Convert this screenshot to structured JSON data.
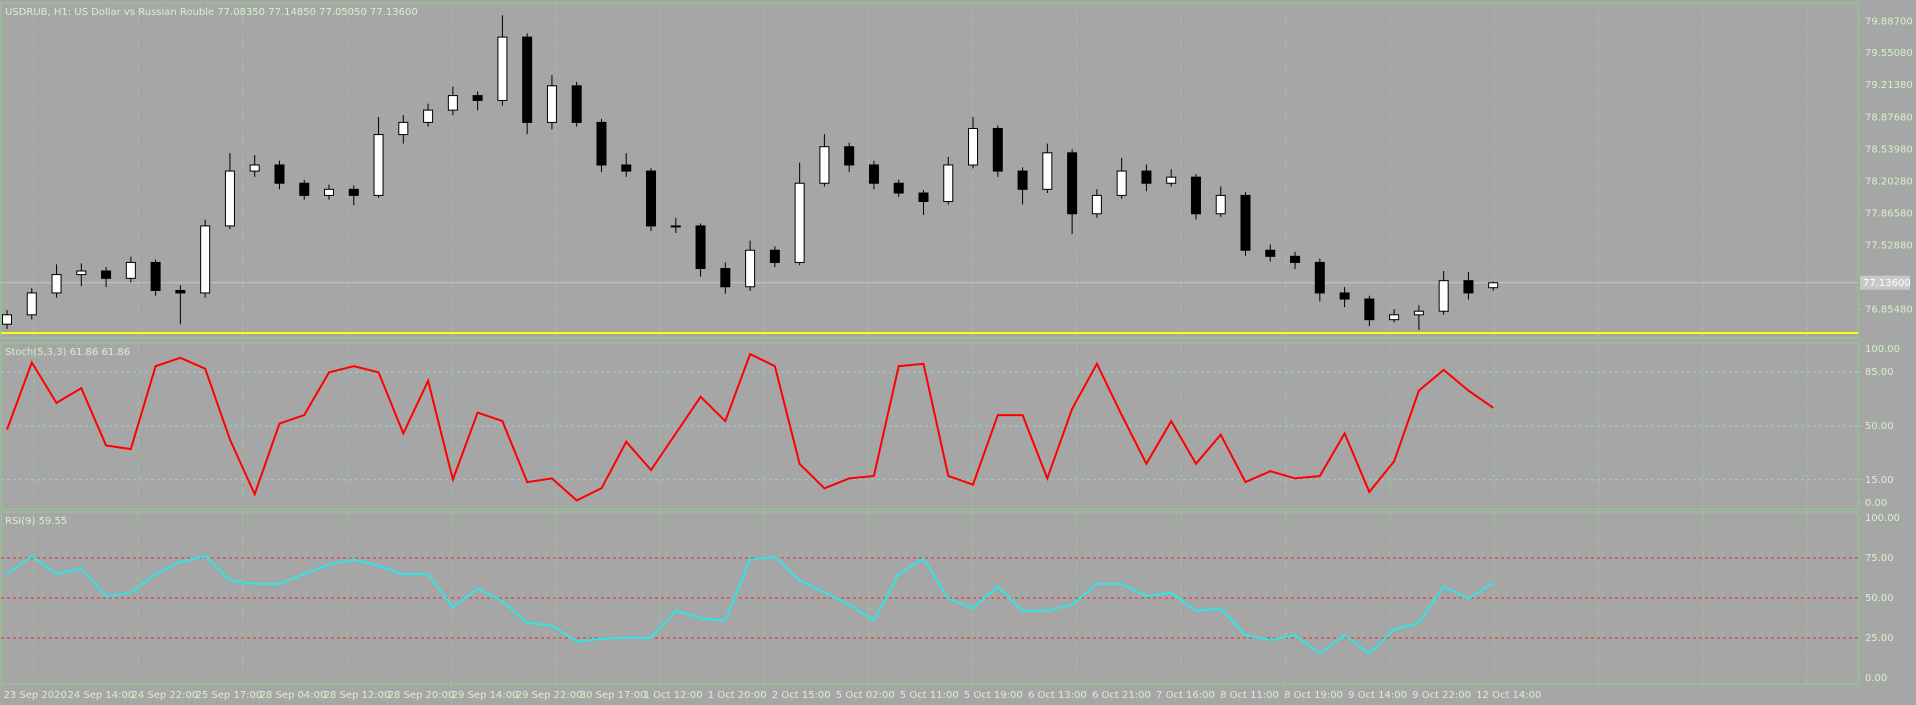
{
  "chart_data": [
    {
      "type": "candlestick",
      "title": "USDRUB, H1:  US Dollar vs Russian Rouble  77.08350 77.14850 77.05050 77.13600",
      "open": [
        76.7,
        76.799,
        77.029,
        77.222,
        77.26,
        77.183,
        77.35,
        77.055,
        77.029,
        77.734,
        78.311,
        78.375,
        78.183,
        78.055,
        78.119,
        78.055,
        78.695,
        78.823,
        78.952,
        79.105,
        79.054,
        79.72,
        78.823,
        79.208,
        78.823,
        78.375,
        78.311,
        77.734,
        77.734,
        77.286,
        77.094,
        77.478,
        77.35,
        78.183,
        78.567,
        78.375,
        78.183,
        78.08,
        77.991,
        78.375,
        78.759,
        78.311,
        78.119,
        78.503,
        77.862,
        78.055,
        78.311,
        78.183,
        78.247,
        77.862,
        78.055,
        77.478,
        77.414,
        77.35,
        77.029,
        76.965,
        76.748,
        76.799,
        76.837,
        77.158,
        77.084
      ],
      "high": [
        76.85,
        77.08,
        77.33,
        77.34,
        77.3,
        77.41,
        77.38,
        77.11,
        77.8,
        78.5,
        78.48,
        78.42,
        78.22,
        78.17,
        78.16,
        78.88,
        78.9,
        79.02,
        79.2,
        79.15,
        79.95,
        79.76,
        79.32,
        79.25,
        78.86,
        78.5,
        78.34,
        77.82,
        77.76,
        77.35,
        77.58,
        77.52,
        78.4,
        78.7,
        78.61,
        78.42,
        78.22,
        78.11,
        78.46,
        78.88,
        78.79,
        78.35,
        78.6,
        78.54,
        78.12,
        78.45,
        78.38,
        78.33,
        78.28,
        78.15,
        78.09,
        77.54,
        77.46,
        77.39,
        77.09,
        77.0,
        76.86,
        76.9,
        77.26,
        77.25,
        77.149
      ],
      "low": [
        76.65,
        76.75,
        76.98,
        77.1,
        77.09,
        77.14,
        77.0,
        76.7,
        76.98,
        77.7,
        78.25,
        78.12,
        78.01,
        78.01,
        77.95,
        78.03,
        78.6,
        78.78,
        78.9,
        78.95,
        79.0,
        78.7,
        78.75,
        78.78,
        78.3,
        78.25,
        77.68,
        77.66,
        77.2,
        77.02,
        77.05,
        77.3,
        77.32,
        78.15,
        78.3,
        78.12,
        78.04,
        77.85,
        77.96,
        78.34,
        78.25,
        77.96,
        78.08,
        77.65,
        77.82,
        78.02,
        78.1,
        78.15,
        77.8,
        77.83,
        77.42,
        77.36,
        77.28,
        76.94,
        76.88,
        76.68,
        76.72,
        76.64,
        76.8,
        76.96,
        77.051
      ],
      "close": [
        76.799,
        77.029,
        77.222,
        77.26,
        77.183,
        77.35,
        77.055,
        77.029,
        77.734,
        78.311,
        78.375,
        78.183,
        78.055,
        78.119,
        78.055,
        78.695,
        78.823,
        78.952,
        79.105,
        79.054,
        79.72,
        78.823,
        79.208,
        78.823,
        78.375,
        78.311,
        77.734,
        77.734,
        77.286,
        77.094,
        77.478,
        77.35,
        78.183,
        78.567,
        78.375,
        78.183,
        78.08,
        77.991,
        78.375,
        78.759,
        78.311,
        78.119,
        78.503,
        77.862,
        78.055,
        78.311,
        78.183,
        78.247,
        77.862,
        78.055,
        77.478,
        77.414,
        77.35,
        77.029,
        76.965,
        76.748,
        76.799,
        76.837,
        77.158,
        77.029,
        77.136
      ],
      "ylim": [
        76.555,
        80.079
      ],
      "yticks": [
        {
          "value": 79.887,
          "label": "79.88700"
        },
        {
          "value": 79.5508,
          "label": "79.55080"
        },
        {
          "value": 79.2138,
          "label": "79.21380"
        },
        {
          "value": 78.8768,
          "label": "78.87680"
        },
        {
          "value": 78.5398,
          "label": "78.53980"
        },
        {
          "value": 78.2028,
          "label": "78.20280"
        },
        {
          "value": 77.8658,
          "label": "77.86580"
        },
        {
          "value": 77.5288,
          "label": "77.52880"
        },
        {
          "value": 76.8548,
          "label": "76.85480"
        }
      ],
      "price_label": {
        "value": 77.136,
        "label": "77.13600"
      },
      "hlines": [
        {
          "value": 76.607,
          "color": "#ffff00"
        }
      ]
    },
    {
      "type": "line",
      "title": "Stoch(5,3,3) 61.86 61.86",
      "color": "#ff0000",
      "values": [
        47.6,
        91.3,
        65,
        74.6,
        37.3,
        35,
        88.9,
        94.4,
        87.3,
        41.3,
        5.6,
        51.6,
        57.1,
        84.9,
        88.9,
        84.9,
        45.2,
        79.4,
        15.1,
        58.7,
        53.2,
        13.5,
        15.9,
        1.6,
        9.5,
        39.7,
        21.4,
        45.2,
        69,
        53.2,
        96.8,
        88.9,
        25.4,
        9.5,
        15.9,
        17.5,
        88.9,
        90.5,
        17.5,
        11.9,
        57.1,
        57.1,
        15.9,
        61.1,
        90.5,
        57.1,
        25.4,
        53.2,
        25.4,
        44.4,
        13.5,
        20.6,
        15.9,
        17.5,
        45.2,
        7.1,
        27,
        73,
        86.5,
        73,
        61.86
      ],
      "ylim": [
        -4,
        104
      ],
      "yticks": [
        {
          "value": 100,
          "label": "100.00"
        },
        {
          "value": 85,
          "label": "85.00"
        },
        {
          "value": 50,
          "label": "50.00"
        },
        {
          "value": 15,
          "label": "15.00"
        },
        {
          "value": 0,
          "label": "0.00"
        }
      ],
      "levels": [
        85,
        50,
        15
      ],
      "level_color": "#8fd3d3"
    },
    {
      "type": "line",
      "title": "RSI(9) 59.55",
      "color": "#2ee6e6",
      "values": [
        64.9,
        76.3,
        64.9,
        68.7,
        51.1,
        53.4,
        64.9,
        72.5,
        76.3,
        61.1,
        58.8,
        58.8,
        64.9,
        71,
        74,
        70.2,
        64.9,
        64.9,
        44.3,
        55.7,
        48.1,
        34.4,
        32.8,
        22.9,
        24.4,
        25.2,
        25.2,
        42,
        37.4,
        35.9,
        74,
        75.6,
        61.1,
        53.4,
        45.8,
        35.9,
        64.9,
        74.8,
        49.6,
        43.5,
        57.3,
        42,
        42,
        45.8,
        58.8,
        58.8,
        51.1,
        53.4,
        42,
        43.5,
        26.7,
        23.7,
        26.7,
        15.3,
        26.7,
        15.3,
        30.5,
        34.4,
        57.3,
        49.6,
        59.55
      ],
      "ylim": [
        -3.8,
        103.8
      ],
      "yticks": [
        {
          "value": 100,
          "label": "100.00"
        },
        {
          "value": 75,
          "label": "75.00"
        },
        {
          "value": 50,
          "label": "50.00"
        },
        {
          "value": 25,
          "label": "25.00"
        },
        {
          "value": 0,
          "label": "0.00"
        }
      ],
      "levels": [
        75,
        50,
        25
      ],
      "level_color": "#e03030",
      "time_labels": [
        "23 Sep 2020",
        "24 Sep 14:00",
        "24 Sep 22:00",
        "25 Sep 17:00",
        "28 Sep 04:00",
        "28 Sep 12:00",
        "28 Sep 20:00",
        "29 Sep 14:00",
        "29 Sep 22:00",
        "30 Sep 17:00",
        "1 Oct 12:00",
        "1 Oct 20:00",
        "2 Oct 15:00",
        "5 Oct 02:00",
        "5 Oct 11:00",
        "5 Oct 19:00",
        "6 Oct 13:00",
        "6 Oct 21:00",
        "7 Oct 16:00",
        "8 Oct 11:00",
        "8 Oct 19:00",
        "9 Oct 14:00",
        "9 Oct 22:00",
        "12 Oct 14:00"
      ]
    }
  ]
}
